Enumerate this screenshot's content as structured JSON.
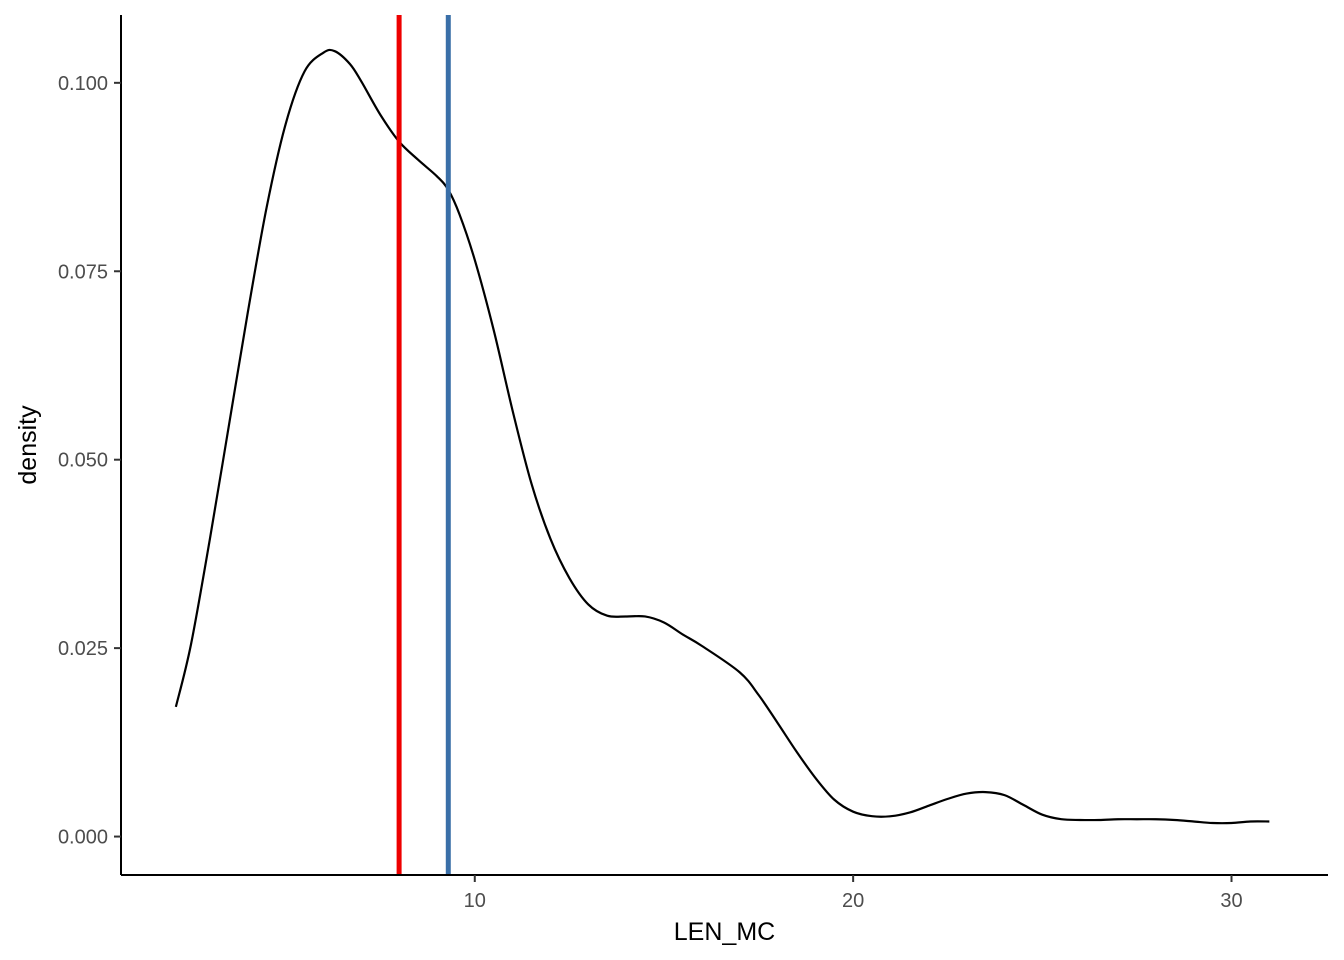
{
  "chart_data": {
    "type": "line",
    "title": "",
    "xlabel": "LEN_MC",
    "ylabel": "density",
    "xlim": [
      0.65,
      32.55
    ],
    "ylim": [
      -0.0051,
      0.109
    ],
    "x_ticks": [
      10,
      20,
      30
    ],
    "x_tick_labels": [
      "10",
      "20",
      "30"
    ],
    "y_ticks": [
      0.0,
      0.025,
      0.05,
      0.075,
      0.1
    ],
    "y_tick_labels": [
      "0.000",
      "0.025",
      "0.050",
      "0.075",
      "0.100"
    ],
    "grid": false,
    "legend": "none",
    "series": [
      {
        "color": "#000000",
        "x": [
          2.1,
          2.5,
          3.0,
          3.5,
          4.0,
          4.5,
          5.0,
          5.5,
          6.0,
          6.3,
          6.7,
          7.0,
          7.5,
          8.0,
          8.5,
          9.0,
          9.3,
          9.6,
          10.0,
          10.5,
          11.0,
          11.5,
          12.0,
          12.5,
          13.0,
          13.5,
          14.0,
          14.5,
          15.0,
          15.5,
          16.0,
          17.0,
          17.5,
          18.0,
          18.5,
          19.0,
          19.5,
          20.0,
          20.5,
          21.0,
          21.5,
          22.0,
          22.5,
          23.0,
          23.5,
          24.0,
          24.5,
          25.0,
          25.5,
          26.0,
          26.5,
          27.0,
          27.5,
          28.0,
          28.5,
          29.0,
          29.5,
          30.0,
          30.5,
          31.0
        ],
        "y": [
          0.0172,
          0.0255,
          0.0395,
          0.0545,
          0.0695,
          0.0835,
          0.0945,
          0.1015,
          0.104,
          0.1042,
          0.1025,
          0.1002,
          0.0958,
          0.0922,
          0.0898,
          0.0876,
          0.0858,
          0.0825,
          0.0765,
          0.0672,
          0.0565,
          0.0468,
          0.0395,
          0.0343,
          0.0308,
          0.0293,
          0.0292,
          0.0292,
          0.0284,
          0.0268,
          0.0253,
          0.0218,
          0.0188,
          0.0151,
          0.0113,
          0.0078,
          0.0049,
          0.0033,
          0.0027,
          0.0027,
          0.0032,
          0.0041,
          0.005,
          0.0057,
          0.0059,
          0.0055,
          0.0042,
          0.0029,
          0.0023,
          0.0022,
          0.0022,
          0.0023,
          0.0023,
          0.0023,
          0.0022,
          0.002,
          0.0018,
          0.0018,
          0.002,
          0.002
        ]
      }
    ],
    "vlines": [
      {
        "x": 8.0,
        "color": "#ee0000"
      },
      {
        "x": 9.3,
        "color": "#3a6fa8"
      }
    ]
  }
}
